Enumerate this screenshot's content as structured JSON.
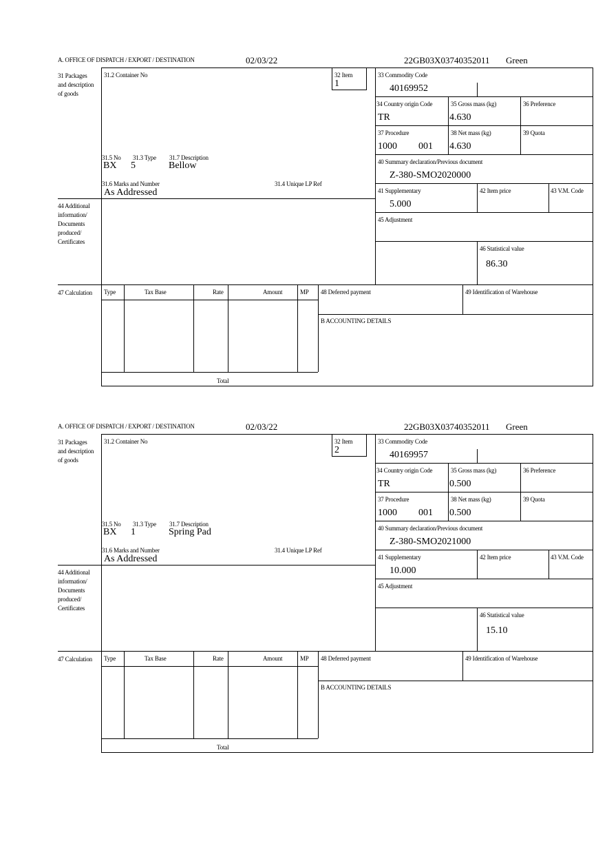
{
  "labels": {
    "office": "A.  OFFICE OF DISPATCH / EXPORT / DESTINATION",
    "packages": "31 Packages and description of goods",
    "container_no": "31.2 Container No",
    "item": "32 Item",
    "no": "31.5 No",
    "type": "31.3 Type",
    "description": "31.7 Description",
    "marks": "31.6 Marks and Number",
    "unique_lp_ref": "31.4 Unique LP Ref",
    "commodity_code": "33 Commodity Code",
    "country_origin": "34 Country origin Code",
    "gross_mass": "35 Gross mass (kg)",
    "preference": "36 Preference",
    "procedure": "37 Procedure",
    "net_mass": "38 Net mass (kg)",
    "quota": "39 Quota",
    "summary_declaration": "40 Summary declaration/Previous document",
    "supplementary": "41 Supplementary",
    "item_price": "42 Item price",
    "vm_code": "43 V.M. Code",
    "additional_info": "44 Additional information/ Documents produced/ Certificates",
    "adjustment": "45 Adjustment",
    "statistical_value": "46 Statistical value",
    "calculation": "47 Calculation",
    "col_type": "Type",
    "col_tax_base": "Tax Base",
    "col_rate": "Rate",
    "col_amount": "Amount",
    "col_mp": "MP",
    "deferred_payment": "48 Deferred payment",
    "warehouse": "49 Identification of Warehouse",
    "accounting": "B ACCOUNTING DETAILS",
    "total": "Total"
  },
  "items": [
    {
      "date": "02/03/22",
      "reference": "22GB03X03740352011",
      "route": "Green",
      "item_no": "1",
      "pkg_no": "BX",
      "pkg_type": "5",
      "description": "Bellow",
      "marks": "As Addressed",
      "commodity_code": "40169952",
      "country_origin": "TR",
      "gross_mass": "4.630",
      "procedure_code": "1000",
      "procedure_suffix": "001",
      "net_mass": "4.630",
      "summary_declaration": "Z-380-SMO2020000",
      "supplementary": "5.000",
      "statistical_value": "86.30"
    },
    {
      "date": "02/03/22",
      "reference": "22GB03X03740352011",
      "route": "Green",
      "item_no": "2",
      "pkg_no": "BX",
      "pkg_type": "1",
      "description": "Spring Pad",
      "marks": "As Addressed",
      "commodity_code": "40169957",
      "country_origin": "TR",
      "gross_mass": "0.500",
      "procedure_code": "1000",
      "procedure_suffix": "001",
      "net_mass": "0.500",
      "summary_declaration": "Z-380-SMO2021000",
      "supplementary": "10.000",
      "statistical_value": "15.10"
    }
  ]
}
